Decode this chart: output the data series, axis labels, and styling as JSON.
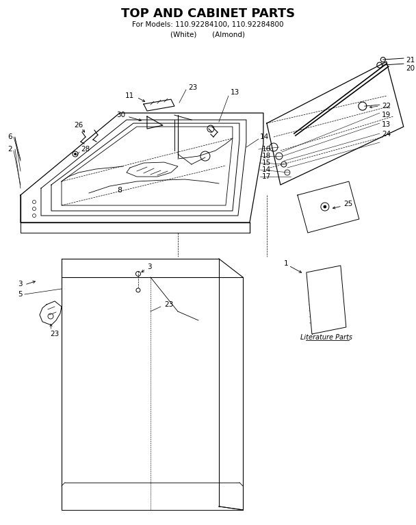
{
  "title": "TOP AND CABINET PARTS",
  "subtitle_line1": "For Models: 110.92284100, 110.92284800",
  "subtitle_line2": "(White)       (Almond)",
  "bg_color": "#ffffff",
  "line_color": "#000000",
  "title_fontsize": 13,
  "subtitle_fontsize": 7.5,
  "label_fontsize": 7.5,
  "fig_width": 6.08,
  "fig_height": 7.67,
  "dpi": 100
}
